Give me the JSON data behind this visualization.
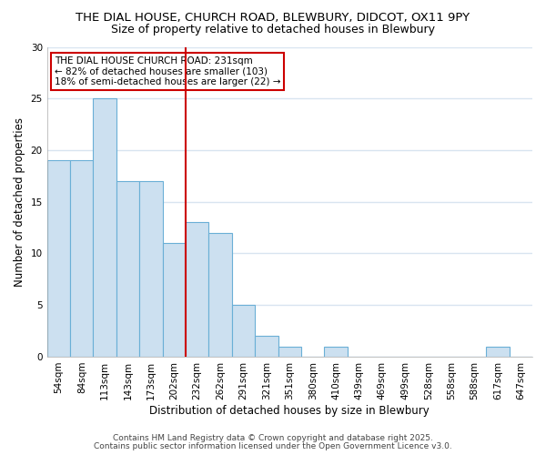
{
  "title_line1": "THE DIAL HOUSE, CHURCH ROAD, BLEWBURY, DIDCOT, OX11 9PY",
  "title_line2": "Size of property relative to detached houses in Blewbury",
  "xlabel": "Distribution of detached houses by size in Blewbury",
  "ylabel": "Number of detached properties",
  "bin_labels": [
    "54sqm",
    "84sqm",
    "113sqm",
    "143sqm",
    "173sqm",
    "202sqm",
    "232sqm",
    "262sqm",
    "291sqm",
    "321sqm",
    "351sqm",
    "380sqm",
    "410sqm",
    "439sqm",
    "469sqm",
    "499sqm",
    "528sqm",
    "558sqm",
    "588sqm",
    "617sqm",
    "647sqm"
  ],
  "bar_values": [
    19,
    19,
    25,
    17,
    17,
    11,
    13,
    12,
    5,
    2,
    1,
    0,
    1,
    0,
    0,
    0,
    0,
    0,
    0,
    1,
    0
  ],
  "bar_color": "#cce0f0",
  "bar_edge_color": "#6aafd6",
  "property_line_color": "#cc0000",
  "property_line_bin": 6,
  "annotation_title": "THE DIAL HOUSE CHURCH ROAD: 231sqm",
  "annotation_line2": "← 82% of detached houses are smaller (103)",
  "annotation_line3": "18% of semi-detached houses are larger (22) →",
  "annotation_box_color": "#ffffff",
  "annotation_box_edge_color": "#cc0000",
  "ylim": [
    0,
    30
  ],
  "yticks": [
    0,
    5,
    10,
    15,
    20,
    25,
    30
  ],
  "footer_line1": "Contains HM Land Registry data © Crown copyright and database right 2025.",
  "footer_line2": "Contains public sector information licensed under the Open Government Licence v3.0.",
  "background_color": "#ffffff",
  "grid_color": "#d8e4f0",
  "title_fontsize": 9.5,
  "subtitle_fontsize": 9,
  "axis_label_fontsize": 8.5,
  "tick_fontsize": 7.5,
  "annotation_fontsize": 7.5,
  "footer_fontsize": 6.5
}
